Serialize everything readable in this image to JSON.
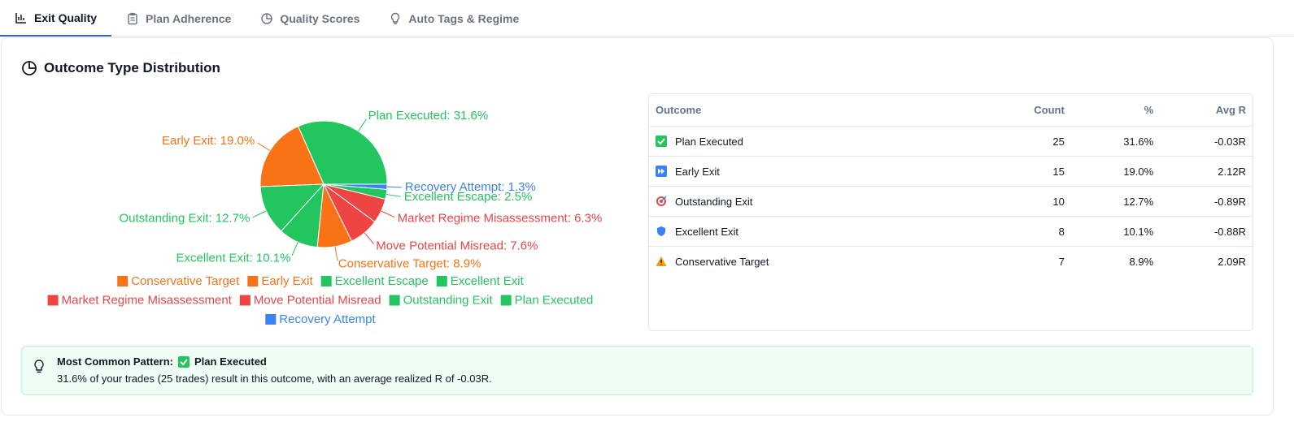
{
  "tabs": [
    {
      "label": "Exit Quality",
      "active": true
    },
    {
      "label": "Plan Adherence",
      "active": false
    },
    {
      "label": "Quality Scores",
      "active": false
    },
    {
      "label": "Auto Tags & Regime",
      "active": false
    }
  ],
  "section_title": "Outcome Type Distribution",
  "chart_data": {
    "type": "pie",
    "categories": [
      "Plan Executed",
      "Early Exit",
      "Outstanding Exit",
      "Excellent Exit",
      "Conservative Target",
      "Move Potential Misread",
      "Market Regime Misassessment",
      "Excellent Escape",
      "Recovery Attempt"
    ],
    "values": [
      31.6,
      19.0,
      12.7,
      10.1,
      8.9,
      7.6,
      6.3,
      2.5,
      1.3
    ],
    "value_labels": [
      "Plan Executed: 31.6%",
      "Early Exit: 19.0%",
      "Outstanding Exit: 12.7%",
      "Excellent Exit: 10.1%",
      "Conservative Target: 8.9%",
      "Move Potential Misread: 7.6%",
      "Market Regime Misassessment: 6.3%",
      "Excellent Escape: 2.5%",
      "Recovery Attempt: 1.3%"
    ],
    "colors": [
      "#22c55e",
      "#f97316",
      "#22c55e",
      "#22c55e",
      "#f97316",
      "#ef4444",
      "#ef4444",
      "#22c55e",
      "#3b82f6"
    ]
  },
  "table": {
    "columns": [
      "Outcome",
      "Count",
      "%",
      "Avg R"
    ],
    "rows": [
      [
        "Plan Executed",
        25,
        "31.6%",
        "-0.03R"
      ],
      [
        "Early Exit",
        15,
        "19.0%",
        "2.12R"
      ],
      [
        "Outstanding Exit",
        10,
        "12.7%",
        "-0.89R"
      ],
      [
        "Excellent Exit",
        8,
        "10.1%",
        "-0.88R"
      ],
      [
        "Conservative Target",
        7,
        "8.9%",
        "2.09R"
      ]
    ]
  },
  "insight": {
    "label": "Most Common Pattern:",
    "value": "Plan Executed",
    "text": "31.6% of your trades (25 trades) result in this outcome, with an average realized R of -0.03R."
  }
}
